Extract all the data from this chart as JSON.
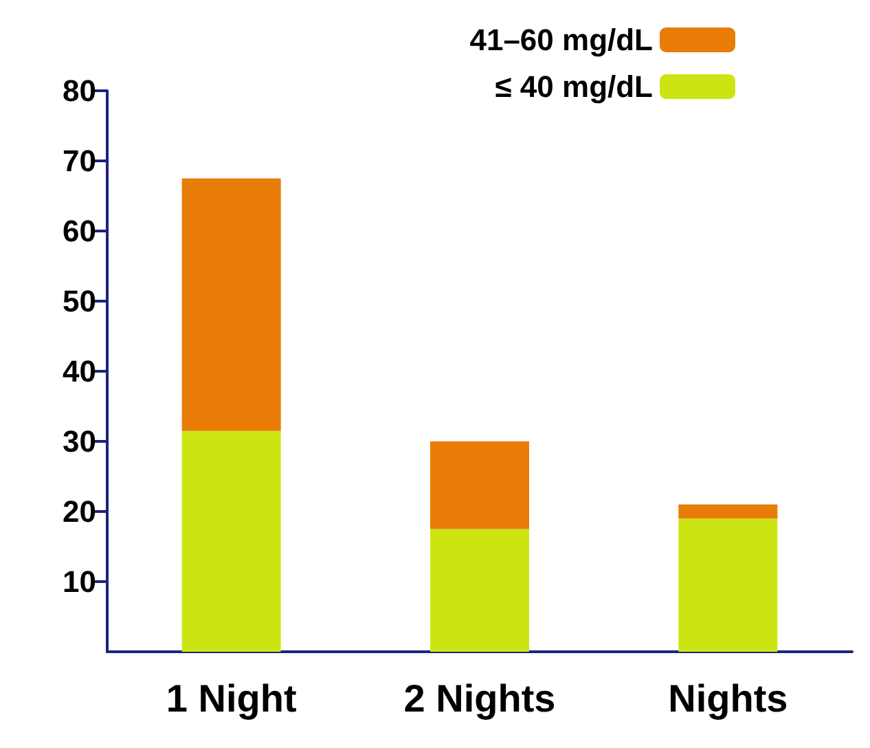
{
  "chart_data": {
    "type": "bar",
    "stacked": true,
    "categories": [
      "1 Night",
      "2 Nights",
      "Nights"
    ],
    "series": [
      {
        "name": "≤ 40 mg/dL",
        "color": "#cce512",
        "values": [
          31.5,
          17.5,
          19
        ]
      },
      {
        "name": "41–60 mg/dL",
        "color": "#e87c06",
        "values": [
          36,
          12.5,
          2
        ]
      }
    ],
    "ylim": [
      0,
      80
    ],
    "yticks": [
      10,
      20,
      30,
      40,
      50,
      60,
      70,
      80
    ],
    "grid": false,
    "legend": "top right"
  }
}
